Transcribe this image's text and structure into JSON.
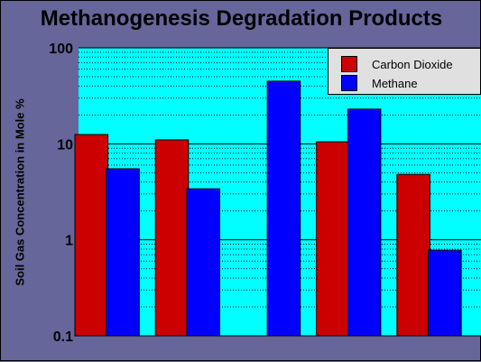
{
  "colors": {
    "background": "#66669a",
    "plot_background": "#00ffff",
    "carbon_dioxide": "#cc0000",
    "methane": "#0000ff",
    "legend_background": "#e0e0e0"
  },
  "chart_data": {
    "type": "bar",
    "title": "Methanogenesis Degradation Products",
    "xlabel": "",
    "ylabel": "Soil Gas Concentration in Mole %",
    "yscale": "log",
    "ylim": [
      0.1,
      100
    ],
    "yticks": [
      "0.1",
      "1",
      "10",
      "100"
    ],
    "grid": true,
    "legend_position": "top-right",
    "categories": [
      "",
      "",
      "",
      "",
      ""
    ],
    "series": [
      {
        "name": "Carbon Dioxide",
        "color": "#cc0000",
        "values": [
          12.5,
          11,
          null,
          10.5,
          4.8
        ]
      },
      {
        "name": "Methane",
        "color": "#0000ff",
        "values": [
          5.5,
          3.4,
          45,
          23,
          0.78
        ]
      }
    ]
  }
}
